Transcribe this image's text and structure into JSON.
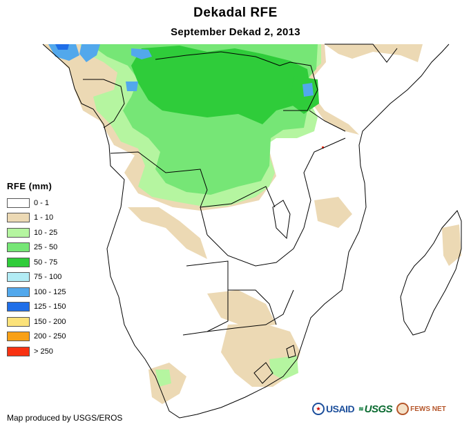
{
  "title": "Dekadal RFE",
  "subtitle": "September Dekad 2, 2013",
  "legend": {
    "title": "RFE (mm)",
    "items": [
      {
        "label": "0 - 1",
        "color": "#ffffff"
      },
      {
        "label": "1 - 10",
        "color": "#ecd9b4"
      },
      {
        "label": "10 - 25",
        "color": "#b5f5a0"
      },
      {
        "label": "25 - 50",
        "color": "#76e676"
      },
      {
        "label": "50 - 75",
        "color": "#2fcc3a"
      },
      {
        "label": "75 - 100",
        "color": "#b2ecf5"
      },
      {
        "label": "100 - 125",
        "color": "#52a8ec"
      },
      {
        "label": "125 - 150",
        "color": "#1f6ee8"
      },
      {
        "label": "150 - 200",
        "color": "#fbe27a"
      },
      {
        "label": "200 - 250",
        "color": "#f8a016"
      },
      {
        "label": "> 250",
        "color": "#f83212"
      }
    ]
  },
  "credit": "Map produced by USGS/EROS",
  "logos": [
    {
      "name": "USAID",
      "icon": "usaid-seal-icon"
    },
    {
      "name": "USGS",
      "icon": "usgs-mark-icon"
    },
    {
      "name": "FEWS NET",
      "icon": "fews-seal-icon"
    }
  ],
  "colors": {
    "land": "#ffffff",
    "border": "#000000",
    "ocean": "#ffffff"
  }
}
